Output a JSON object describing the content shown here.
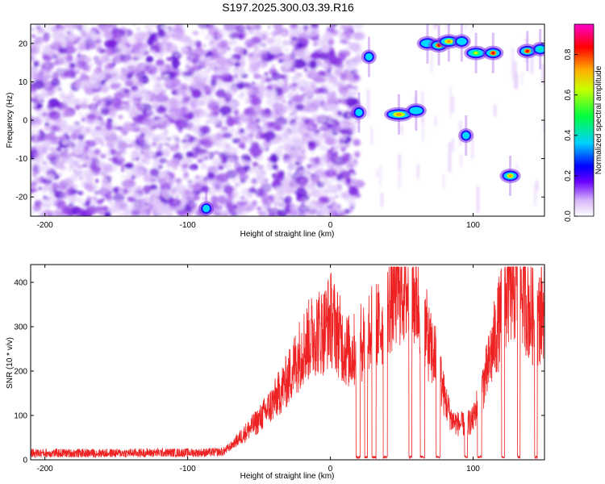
{
  "title": "S197.2025.300.03.39.R16",
  "chart_data": [
    {
      "type": "heatmap",
      "xlabel": "Height of straight line (km)",
      "ylabel": "Frequency (Hz)",
      "xlim": [
        -210,
        150
      ],
      "ylim": [
        -25,
        25
      ],
      "xticks": [
        -200,
        -100,
        0,
        100
      ],
      "yticks": [
        -20,
        -10,
        0,
        10,
        20
      ],
      "colorbar": {
        "label": "Normalized spectral amplitude",
        "range": [
          0,
          0.95
        ],
        "ticks": [
          0.0,
          0.2,
          0.4,
          0.6,
          0.8
        ]
      },
      "features": [
        {
          "x": 20,
          "y": 2,
          "width": 4,
          "amp": 0.3
        },
        {
          "x": 27,
          "y": 16.5,
          "width": 4,
          "amp": 0.35
        },
        {
          "x": 48,
          "y": 1.5,
          "width": 14,
          "amp": 0.75
        },
        {
          "x": 60,
          "y": 2.5,
          "width": 8,
          "amp": 0.35
        },
        {
          "x": 68,
          "y": 20,
          "width": 8,
          "amp": 0.3
        },
        {
          "x": 76,
          "y": 19.5,
          "width": 8,
          "amp": 0.9
        },
        {
          "x": 83,
          "y": 20.5,
          "width": 10,
          "amp": 0.85
        },
        {
          "x": 92,
          "y": 20.5,
          "width": 6,
          "amp": 0.35
        },
        {
          "x": 95,
          "y": -4,
          "width": 4,
          "amp": 0.35
        },
        {
          "x": 102,
          "y": 17.5,
          "width": 10,
          "amp": 0.6
        },
        {
          "x": 114,
          "y": 17.5,
          "width": 8,
          "amp": 0.9
        },
        {
          "x": 126,
          "y": -14.5,
          "width": 8,
          "amp": 0.85
        },
        {
          "x": 138,
          "y": 18,
          "width": 8,
          "amp": 0.95
        },
        {
          "x": 147,
          "y": 18.5,
          "width": 6,
          "amp": 0.4
        },
        {
          "x": -87,
          "y": -23,
          "width": 4,
          "amp": 0.35
        }
      ]
    },
    {
      "type": "line",
      "xlabel": "Height of straight line (km)",
      "ylabel": "SNR (10 * v/v)",
      "xlim": [
        -210,
        150
      ],
      "ylim": [
        0,
        440
      ],
      "xticks": [
        -200,
        -100,
        0,
        100
      ],
      "yticks": [
        0,
        100,
        200,
        300,
        400
      ],
      "series": [
        {
          "color": "#ee2222",
          "x": [
            -210,
            -180,
            -150,
            -120,
            -90,
            -75,
            -70,
            -60,
            -50,
            -40,
            -30,
            -20,
            -15,
            -10,
            -5,
            0,
            5,
            10,
            15,
            20,
            25,
            30,
            35,
            40,
            45,
            50,
            55,
            60,
            65,
            70,
            75,
            80,
            85,
            90,
            95,
            100,
            105,
            110,
            115,
            120,
            125,
            130,
            135,
            140,
            145,
            150
          ],
          "values": [
            15,
            15,
            15,
            16,
            16,
            18,
            30,
            60,
            90,
            130,
            180,
            250,
            270,
            290,
            290,
            320,
            290,
            250,
            240,
            260,
            280,
            300,
            300,
            340,
            380,
            390,
            380,
            370,
            320,
            250,
            220,
            140,
            90,
            80,
            80,
            90,
            150,
            200,
            270,
            330,
            390,
            400,
            380,
            330,
            310,
            350
          ]
        }
      ],
      "dropouts": [
        [
          18,
          21
        ],
        [
          24,
          26
        ],
        [
          29,
          32
        ],
        [
          37,
          40
        ],
        [
          55,
          57
        ],
        [
          63,
          66
        ],
        [
          74,
          77
        ],
        [
          94,
          96
        ],
        [
          103,
          106
        ],
        [
          120,
          122
        ],
        [
          131,
          133
        ],
        [
          143,
          145
        ]
      ]
    }
  ]
}
